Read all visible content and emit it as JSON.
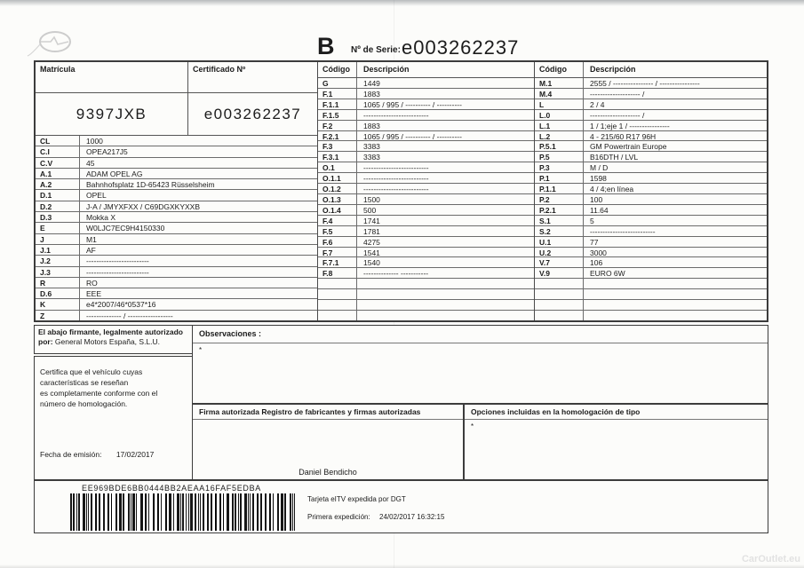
{
  "header": {
    "doc_letter": "B",
    "serie_label": "Nº de Serie:",
    "serie_value": "e003262237"
  },
  "plate": {
    "matricula_label": "Matrícula",
    "matricula_value": "9397JXB",
    "certificado_label": "Certificado Nº",
    "certificado_value": "e003262237"
  },
  "left_rows": [
    [
      "CL",
      "1000"
    ],
    [
      "C.I",
      "OPEA217J5"
    ],
    [
      "C.V",
      "45"
    ],
    [
      "A.1",
      "ADAM OPEL AG"
    ],
    [
      "A.2",
      "Bahnhofsplatz 1D-65423 Rüsselsheim"
    ],
    [
      "D.1",
      "OPEL"
    ],
    [
      "D.2",
      "J-A / JMYXFXX / C69DGXKYXXB"
    ],
    [
      "D.3",
      "Mokka X"
    ],
    [
      "E",
      "W0LJC7EC9H4150330"
    ],
    [
      "J",
      "M1"
    ],
    [
      "J.1",
      "AF"
    ],
    [
      "J.2",
      "-------------------------"
    ],
    [
      "J.3",
      "-------------------------"
    ],
    [
      "R",
      "RO"
    ],
    [
      "D.6",
      "EEE"
    ],
    [
      "K",
      "e4*2007/46*0537*16"
    ],
    [
      "Z",
      "-------------- / ------------------"
    ]
  ],
  "mid_table": {
    "codigo_label": "Código",
    "descripcion_label": "Descripción",
    "rows": [
      [
        "G",
        "1449"
      ],
      [
        "F.1",
        "1883"
      ],
      [
        "F.1.1",
        "1065 / 995 / ---------- / ----------"
      ],
      [
        "F.1.5",
        "--------------------------"
      ],
      [
        "F.2",
        "1883"
      ],
      [
        "F.2.1",
        "1065 / 995 / ---------- / ----------"
      ],
      [
        "F.3",
        "3383"
      ],
      [
        "F.3.1",
        "3383"
      ],
      [
        "O.1",
        "--------------------------"
      ],
      [
        "O.1.1",
        "--------------------------"
      ],
      [
        "O.1.2",
        "--------------------------"
      ],
      [
        "O.1.3",
        "1500"
      ],
      [
        "O.1.4",
        "500"
      ],
      [
        "F.4",
        "1741"
      ],
      [
        "F.5",
        "1781"
      ],
      [
        "F.6",
        "4275"
      ],
      [
        "F.7",
        "1541"
      ],
      [
        "F.7.1",
        "1540"
      ],
      [
        "F.8",
        "-------------- -----------"
      ]
    ]
  },
  "right_table": {
    "codigo_label": "Código",
    "descripcion_label": "Descripción",
    "rows": [
      [
        "M.1",
        "2555 / ---------------- / ----------------"
      ],
      [
        "M.4",
        "-------------------- /"
      ],
      [
        "L",
        "2 / 4"
      ],
      [
        "L.0",
        "-------------------- /"
      ],
      [
        "L.1",
        "1 / 1;eje 1 / ----------------"
      ],
      [
        "L.2",
        "4 - 215/60 R17 96H"
      ],
      [
        "P.5.1",
        "GM Powertrain Europe"
      ],
      [
        "P.5",
        "B16DTH / LVL"
      ],
      [
        "P.3",
        "M / D"
      ],
      [
        "P.1",
        "1598"
      ],
      [
        "P.1.1",
        "4 / 4;en línea"
      ],
      [
        "P.2",
        "100"
      ],
      [
        "P.2.1",
        "11.64"
      ],
      [
        "S.1",
        "5"
      ],
      [
        "S.2",
        "--------------------------"
      ],
      [
        "U.1",
        "77"
      ],
      [
        "U.2",
        "3000"
      ],
      [
        "V.7",
        "106"
      ],
      [
        "V.9",
        "EURO 6W"
      ]
    ]
  },
  "declaration": {
    "line1": "El abajo firmante, legalmente autorizado",
    "line2_bold": "por:",
    "company": "General Motors España, S.L.U.",
    "certifies": "Certifica que el vehículo cuyas\ncaracterísticas se reseñan\nes completamente conforme con el\nnúmero de homologación.",
    "fecha_label": "Fecha de emisión:",
    "fecha_value": "17/02/2017"
  },
  "observaciones": {
    "label": "Observaciones :",
    "content": "*"
  },
  "firma": {
    "label": "Firma autorizada Registro de fabricantes y firmas autorizadas",
    "signer": "Daniel Bendicho"
  },
  "opciones": {
    "label": "Opciones incluidas en la homologación de tipo",
    "content": "*"
  },
  "footer": {
    "barcode_text": "EE969BDE6BB0444BB2AEAA16FAF5EDBA",
    "tarjeta_line": "Tarjeta eITV expedida por DGT",
    "primera_label": "Primera expedición:",
    "primera_value": "24/02/2017 16:32:15"
  },
  "watermark": "CarOutlet.eu"
}
